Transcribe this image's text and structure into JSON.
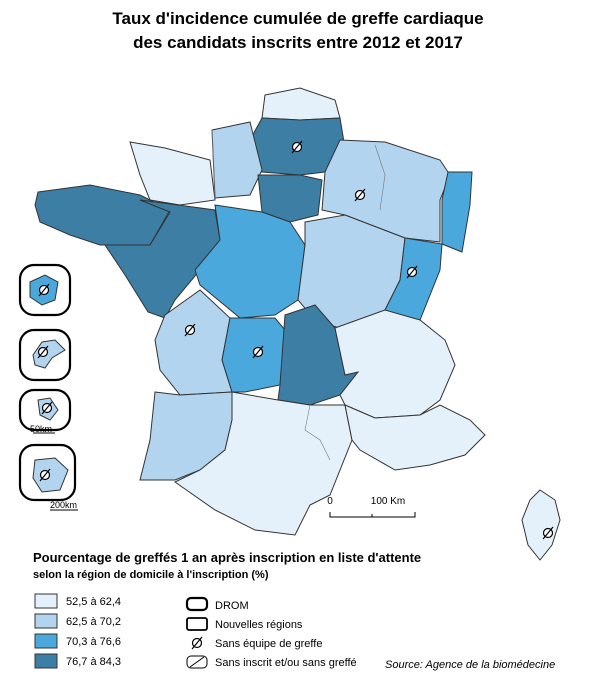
{
  "title": [
    "Taux d'incidence cumulée de greffe cardiaque",
    "des candidats inscrits entre 2012 et 2017"
  ],
  "legend": {
    "title": "Pourcentage de greffés 1 an après inscription en liste d'attente",
    "subtitle": "selon la région de domicile à l'inscription (%)",
    "classes": [
      {
        "label": "52,5 à 62,4",
        "color": "#e5f1fa"
      },
      {
        "label": "62,5 à 70,2",
        "color": "#b3d4ee"
      },
      {
        "label": "70,3 à 76,6",
        "color": "#4aa8dc"
      },
      {
        "label": "76,7 à 84,3",
        "color": "#3d7ea5"
      }
    ],
    "symbols": [
      "DROM",
      "Nouvelles régions",
      "Sans équipe de greffe",
      "Sans inscrit et/ou sans greffé"
    ]
  },
  "scale": {
    "zero": "0",
    "main": "100 Km",
    "drom_small": "50km",
    "drom_large": "200km"
  },
  "source": "Source: Agence de la biomédecine"
}
